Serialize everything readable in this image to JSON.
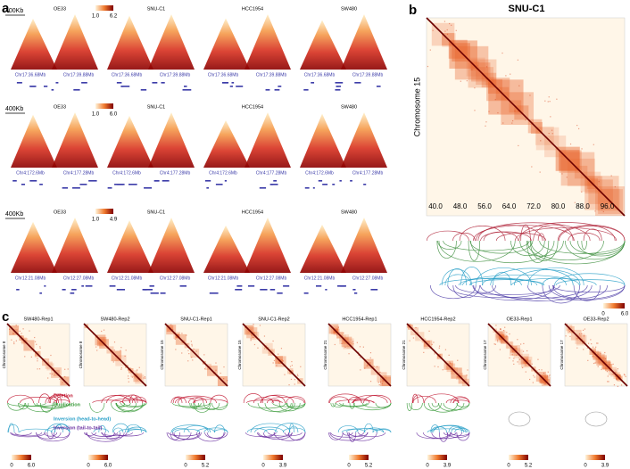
{
  "panel_labels": [
    "a",
    "b",
    "c"
  ],
  "panel_a": {
    "rows": [
      {
        "scale": "400Kb",
        "samples": [
          "OE33",
          "SNU-C1",
          "HCC1954",
          "SW480"
        ],
        "colorbar": [
          "1.0",
          "6.2"
        ],
        "coords": [
          "Chr17:36.68Mb",
          "Chr17:39.88Mb"
        ]
      },
      {
        "scale": "400Kb",
        "samples": [
          "OE33",
          "SNU-C1",
          "HCC1954",
          "SW480"
        ],
        "colorbar": [
          "1.0",
          "6.0"
        ],
        "coords": [
          "Chr4:172.6Mb",
          "Chr4:177.28Mb"
        ]
      },
      {
        "scale": "400Kb",
        "samples": [
          "OE33",
          "SNU-C1",
          "HCC1954",
          "SW480"
        ],
        "colorbar": [
          "1.0",
          "4.9"
        ],
        "coords": [
          "Chr12:21.08Mb",
          "Chr12:27.08Mb"
        ]
      }
    ]
  },
  "panel_b": {
    "title": "SNU-C1",
    "y_label": "Chromosome 15",
    "ticks": [
      "40.0",
      "48.0",
      "56.0",
      "64.0",
      "72.0",
      "80.0",
      "88.0",
      "96.0"
    ],
    "colorbar": [
      "0",
      "6.0"
    ]
  },
  "panel_c": {
    "maps": [
      {
        "title": "SW480-Rep1",
        "y_label": "Chromosome 8",
        "colorbar": [
          "0",
          "6.0"
        ]
      },
      {
        "title": "SW480-Rep2",
        "y_label": "Chromosome 8",
        "colorbar": [
          "0",
          "6.0"
        ]
      },
      {
        "title": "SNU-C1-Rep1",
        "y_label": "Chromosome 15",
        "colorbar": [
          "0",
          "5.2"
        ]
      },
      {
        "title": "SNU-C1-Rep2",
        "y_label": "Chromosome 15",
        "colorbar": [
          "0",
          "3.9"
        ]
      },
      {
        "title": "HCC1954-Rep1",
        "y_label": "Chromosome 21",
        "colorbar": [
          "0",
          "5.2"
        ]
      },
      {
        "title": "HCC1954-Rep2",
        "y_label": "Chromosome 21",
        "colorbar": [
          "0",
          "3.9"
        ]
      },
      {
        "title": "OE33-Rep1",
        "y_label": "Chromosome 17",
        "colorbar": [
          "0",
          "5.2"
        ]
      },
      {
        "title": "OE33-Rep2",
        "y_label": "Chromosome 17",
        "colorbar": [
          "0",
          "3.9"
        ]
      }
    ],
    "legend": [
      "Deletion",
      "Duplication",
      "Inversion (head-to-head)",
      "Inversion (tail-to-tail)"
    ]
  }
}
